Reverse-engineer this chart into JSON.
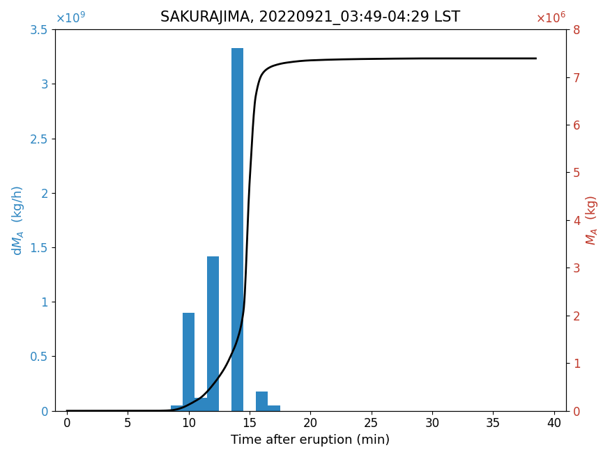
{
  "title": "SAKURAJIMA, 20220921_03:49-04:29 LST",
  "xlabel": "Time after eruption (min)",
  "bar_centers": [
    9,
    10,
    11,
    12,
    13,
    14,
    15,
    16,
    17,
    18,
    19
  ],
  "bar_heights": [
    50000000.0,
    900000000.0,
    120000000.0,
    1420000000.0,
    0.0,
    3330000000.0,
    0.0,
    180000000.0,
    50000000.0,
    0.0,
    0.0
  ],
  "bar_width": 1.0,
  "bar_color": "#2e86c1",
  "xlim": [
    -1,
    41
  ],
  "ylim_left": [
    0,
    3500000000.0
  ],
  "ylim_right": [
    0,
    8000000.0
  ],
  "xticks": [
    0,
    5,
    10,
    15,
    20,
    25,
    30,
    35,
    40
  ],
  "yticks_left": [
    0,
    500000000.0,
    1000000000.0,
    1500000000.0,
    2000000000.0,
    2500000000.0,
    3000000000.0,
    3500000000.0
  ],
  "yticks_right": [
    0,
    1000000.0,
    2000000.0,
    3000000.0,
    4000000.0,
    5000000.0,
    6000000.0,
    7000000.0,
    8000000.0
  ],
  "cumline_x": [
    0,
    7,
    8.5,
    9.0,
    9.5,
    10.0,
    10.5,
    11.0,
    11.5,
    12.0,
    12.5,
    13.0,
    13.5,
    14.0,
    14.5,
    15.0,
    15.5,
    16.0,
    16.5,
    17.0,
    18.0,
    20.0,
    25.0,
    30.0,
    35.0,
    38.5
  ],
  "cumline_y": [
    0,
    0,
    10000.0,
    30000.0,
    70000.0,
    130000.0,
    200000.0,
    280000.0,
    400000.0,
    550000.0,
    720000.0,
    920000.0,
    1180000.0,
    1500000.0,
    2100000.0,
    4800000.0,
    6600000.0,
    7050000.0,
    7180000.0,
    7240000.0,
    7300000.0,
    7350000.0,
    7380000.0,
    7390000.0,
    7390000.0,
    7390000.0
  ],
  "line_color": "#000000",
  "line_width": 2.0,
  "left_label_color": "#2e86c1",
  "right_label_color": "#c0392b",
  "title_fontsize": 15,
  "label_fontsize": 13,
  "tick_fontsize": 12,
  "exponent_fontsize": 12
}
